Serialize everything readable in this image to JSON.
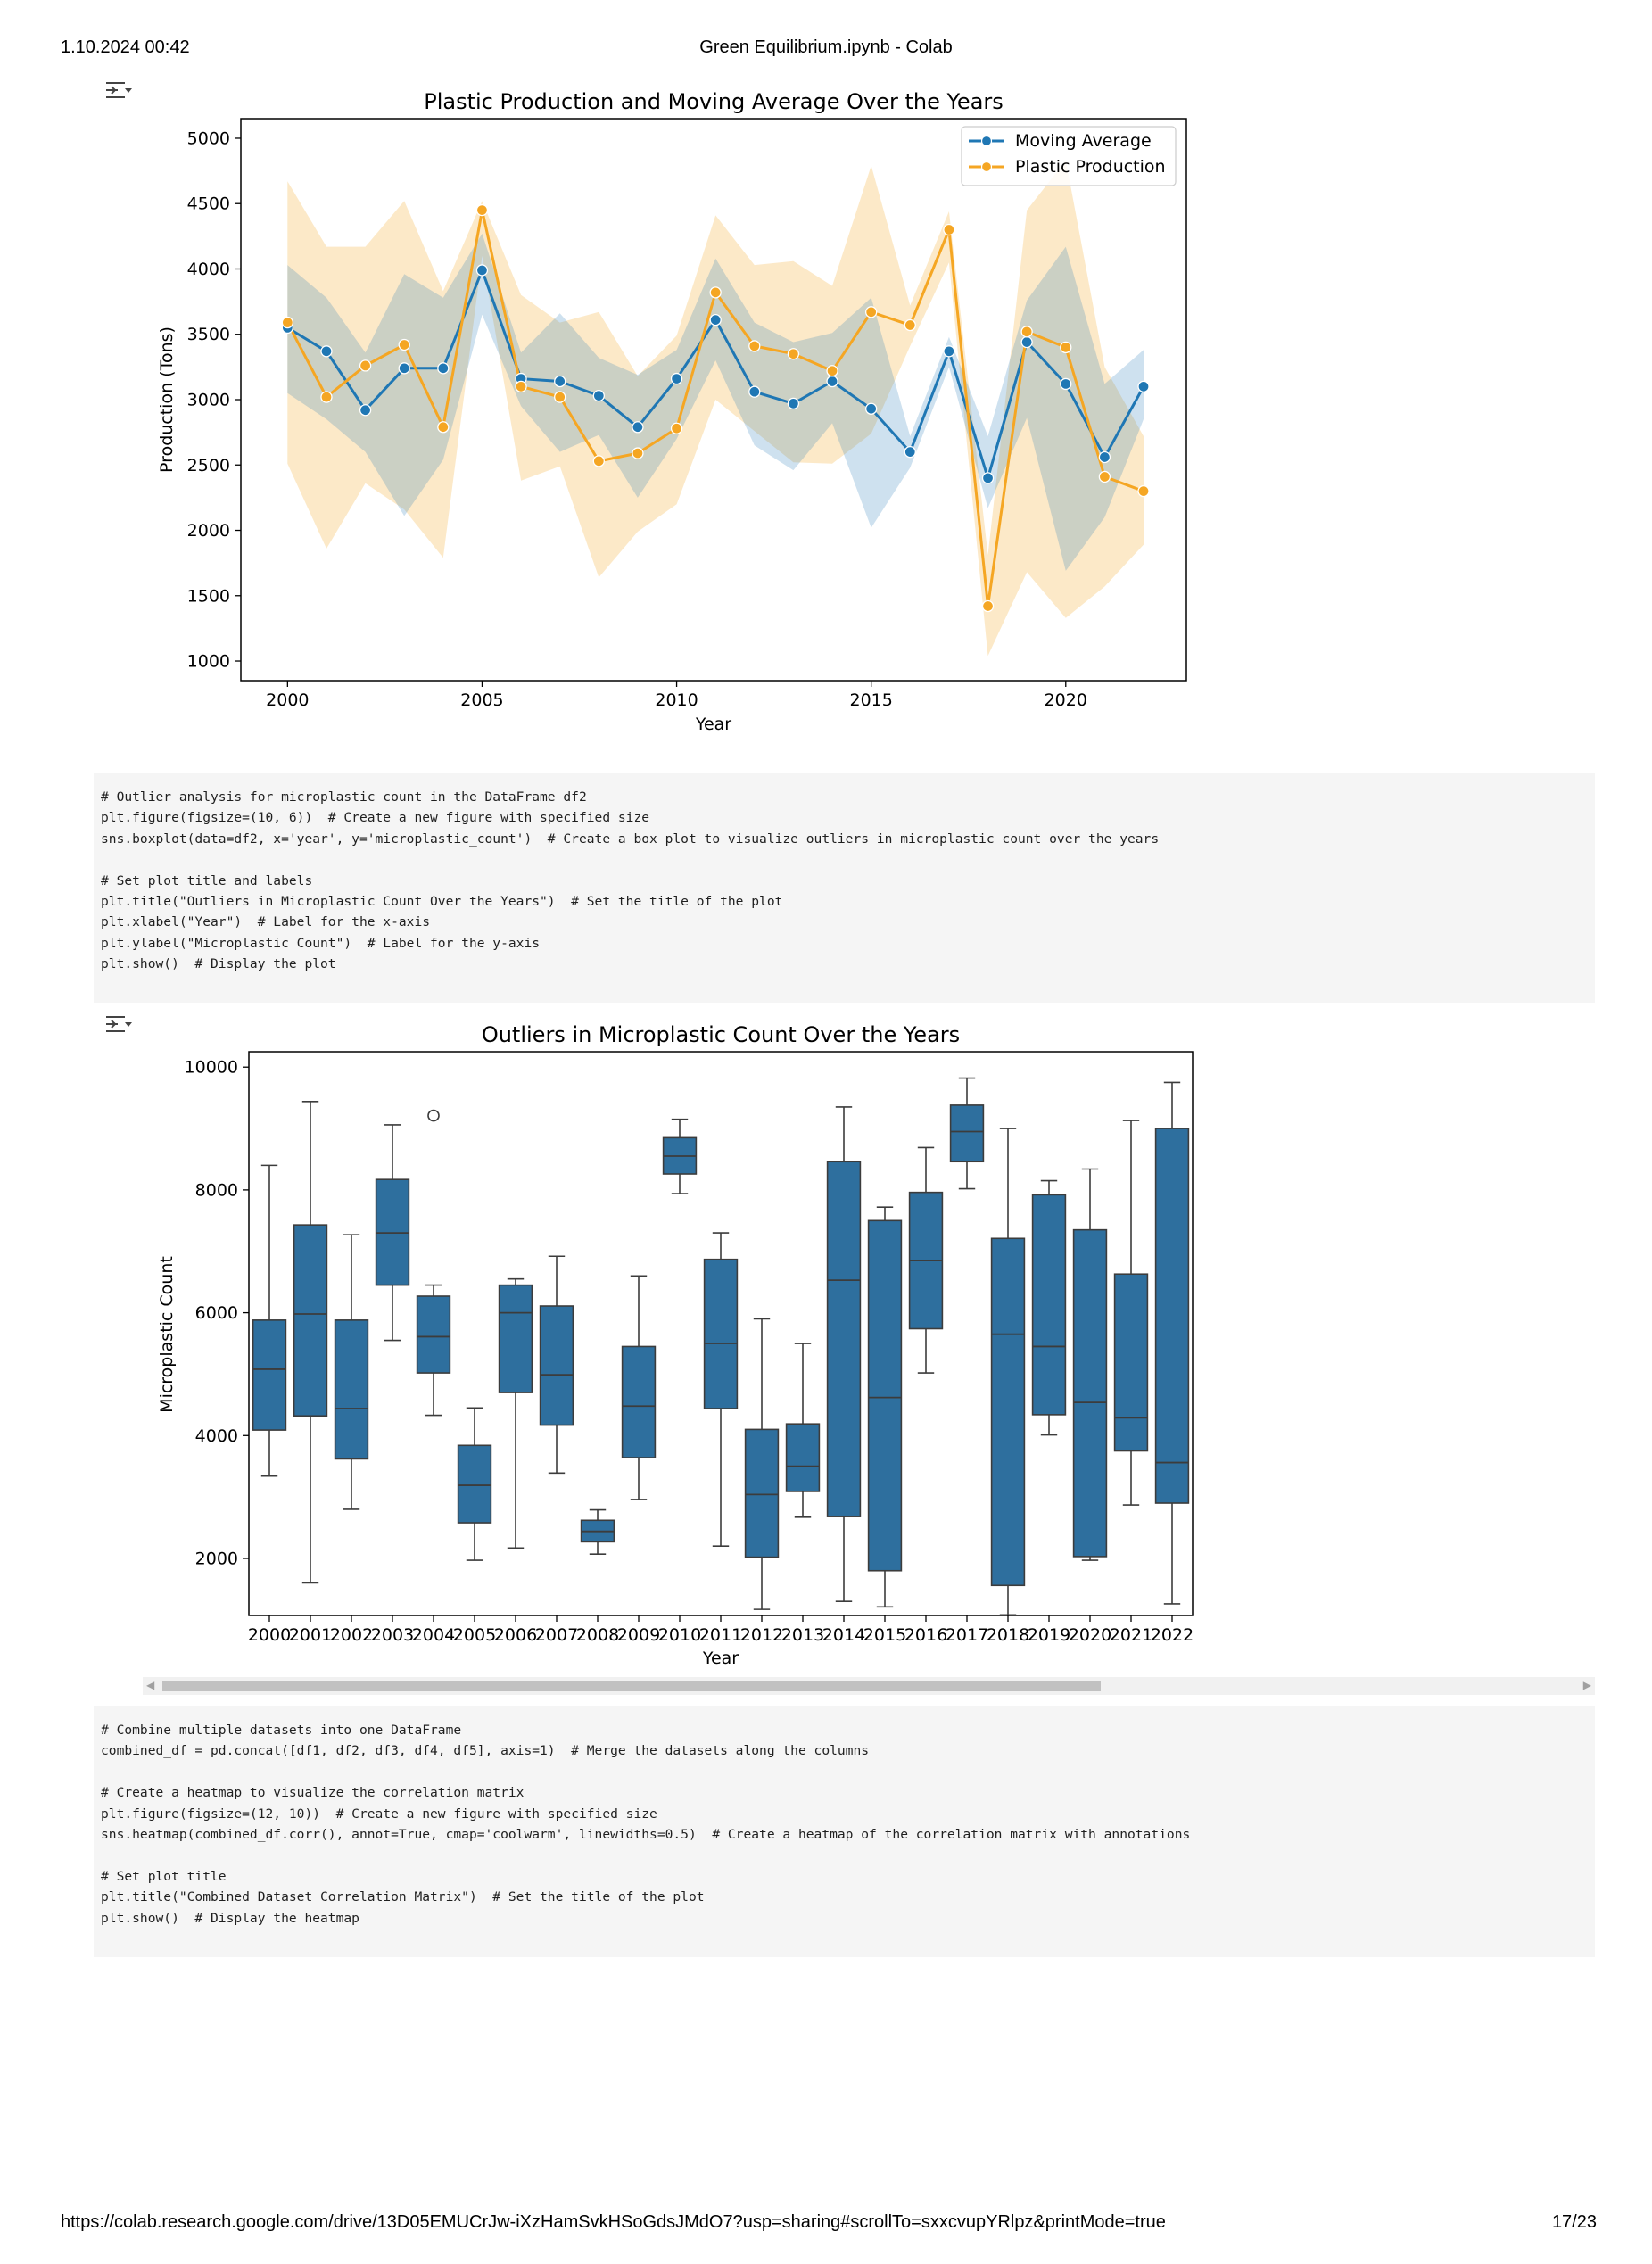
{
  "header": {
    "datetime": "1.10.2024 00:42",
    "title": "Green Equilibrium.ipynb - Colab"
  },
  "footer": {
    "url": "https://colab.research.google.com/drive/13D05EMUCrJw-iXzHamSvkHSoGdsJMdO7?usp=sharing#scrollTo=sxxcvupYRlpz&printMode=true",
    "page": "17/23"
  },
  "icons": {
    "output_toggle": "output-toggle-icon",
    "scroll_left": "chevron-left-icon",
    "scroll_right": "chevron-right-icon"
  },
  "code_cells": [
    {
      "lines": [
        "# Outlier analysis for microplastic count in the DataFrame df2",
        "plt.figure(figsize=(10, 6))  # Create a new figure with specified size",
        "sns.boxplot(data=df2, x='year', y='microplastic_count')  # Create a box plot to visualize outliers in microplastic count over the years",
        "",
        "# Set plot title and labels",
        "plt.title(\"Outliers in Microplastic Count Over the Years\")  # Set the title of the plot",
        "plt.xlabel(\"Year\")  # Label for the x-axis",
        "plt.ylabel(\"Microplastic Count\")  # Label for the y-axis",
        "plt.show()  # Display the plot"
      ]
    },
    {
      "lines": [
        "# Combine multiple datasets into one DataFrame",
        "combined_df = pd.concat([df1, df2, df3, df4, df5], axis=1)  # Merge the datasets along the columns",
        "",
        "# Create a heatmap to visualize the correlation matrix",
        "plt.figure(figsize=(12, 10))  # Create a new figure with specified size",
        "sns.heatmap(combined_df.corr(), annot=True, cmap='coolwarm', linewidths=0.5)  # Create a heatmap of the correlation matrix with annotations",
        "",
        "# Set plot title",
        "plt.title(\"Combined Dataset Correlation Matrix\")  # Set the title of the plot",
        "plt.show()  # Display the heatmap"
      ]
    }
  ],
  "chart_data": [
    {
      "type": "line",
      "title": "Plastic Production and Moving Average Over the Years",
      "xlabel": "Year",
      "ylabel": "Production (Tons)",
      "xlim": [
        1998.8,
        2023.1
      ],
      "ylim": [
        850,
        5150
      ],
      "xticks": [
        2000,
        2005,
        2010,
        2015,
        2020
      ],
      "yticks": [
        1000,
        1500,
        2000,
        2500,
        3000,
        3500,
        4000,
        4500,
        5000
      ],
      "legend_position": "upper right",
      "grid": false,
      "x": [
        2000,
        2001,
        2002,
        2003,
        2004,
        2005,
        2006,
        2007,
        2008,
        2009,
        2010,
        2011,
        2012,
        2013,
        2014,
        2015,
        2016,
        2017,
        2018,
        2019,
        2020,
        2021,
        2022
      ],
      "series": [
        {
          "name": "Moving Average",
          "color": "#1f77b4",
          "values": [
            3550,
            3370,
            2920,
            3240,
            3240,
            3990,
            3160,
            3140,
            3030,
            2790,
            3160,
            3610,
            3060,
            2970,
            3140,
            2930,
            2600,
            3370,
            2400,
            3440,
            3120,
            2560,
            3100
          ],
          "ci_low": [
            3050,
            2850,
            2600,
            2110,
            2540,
            3650,
            2950,
            2600,
            2730,
            2250,
            2700,
            3300,
            2650,
            2460,
            2820,
            2020,
            2480,
            3250,
            2170,
            2860,
            1690,
            2100,
            2850
          ],
          "ci_high": [
            4030,
            3780,
            3360,
            3960,
            3780,
            4270,
            3360,
            3660,
            3320,
            3190,
            3380,
            4080,
            3590,
            3440,
            3510,
            3780,
            2720,
            3480,
            2720,
            3760,
            4170,
            3120,
            3380
          ]
        },
        {
          "name": "Plastic Production",
          "color": "#f5a623",
          "values": [
            3590,
            3020,
            3260,
            3420,
            2790,
            4450,
            3100,
            3020,
            2530,
            2590,
            2780,
            3820,
            3410,
            3350,
            3220,
            3670,
            3570,
            4300,
            1420,
            3520,
            3400,
            2410,
            2300
          ],
          "ci_low": [
            2510,
            1860,
            2360,
            2160,
            1790,
            4100,
            2380,
            2490,
            1640,
            1990,
            2200,
            3000,
            2760,
            2520,
            2510,
            2740,
            3410,
            4050,
            1040,
            1680,
            1330,
            1570,
            1890
          ],
          "ci_high": [
            4670,
            4170,
            4170,
            4520,
            3830,
            4520,
            3800,
            3590,
            3670,
            3180,
            3490,
            4410,
            4030,
            4060,
            3870,
            4790,
            3720,
            4440,
            1810,
            4450,
            4830,
            3250,
            2720
          ]
        }
      ]
    },
    {
      "type": "box",
      "title": "Outliers in Microplastic Count Over the Years",
      "xlabel": "Year",
      "ylabel": "Microplastic Count",
      "ylim": [
        1070,
        10250
      ],
      "yticks": [
        2000,
        4000,
        6000,
        8000,
        10000
      ],
      "color": "#2e6f9e",
      "categories": [
        "2000",
        "2001",
        "2002",
        "2003",
        "2004",
        "2005",
        "2006",
        "2007",
        "2008",
        "2009",
        "2010",
        "2011",
        "2012",
        "2013",
        "2014",
        "2015",
        "2016",
        "2017",
        "2018",
        "2019",
        "2020",
        "2021",
        "2022"
      ],
      "boxes": [
        {
          "whislo": 3340,
          "q1": 4090,
          "med": 5080,
          "q3": 5880,
          "whishi": 8400,
          "fliers": []
        },
        {
          "whislo": 1600,
          "q1": 4320,
          "med": 5980,
          "q3": 7430,
          "whishi": 9440,
          "fliers": []
        },
        {
          "whislo": 2800,
          "q1": 3620,
          "med": 4440,
          "q3": 5880,
          "whishi": 7270,
          "fliers": []
        },
        {
          "whislo": 5550,
          "q1": 6450,
          "med": 7300,
          "q3": 8170,
          "whishi": 9060,
          "fliers": []
        },
        {
          "whislo": 4330,
          "q1": 5020,
          "med": 5610,
          "q3": 6270,
          "whishi": 6450,
          "fliers": [
            9210
          ]
        },
        {
          "whislo": 1970,
          "q1": 2580,
          "med": 3190,
          "q3": 3840,
          "whishi": 4450,
          "fliers": []
        },
        {
          "whislo": 2170,
          "q1": 4700,
          "med": 6000,
          "q3": 6450,
          "whishi": 6550,
          "fliers": []
        },
        {
          "whislo": 3390,
          "q1": 4170,
          "med": 4990,
          "q3": 6110,
          "whishi": 6920,
          "fliers": []
        },
        {
          "whislo": 2070,
          "q1": 2270,
          "med": 2440,
          "q3": 2620,
          "whishi": 2790,
          "fliers": []
        },
        {
          "whislo": 2960,
          "q1": 3640,
          "med": 4480,
          "q3": 5450,
          "whishi": 6600,
          "fliers": []
        },
        {
          "whislo": 7940,
          "q1": 8260,
          "med": 8550,
          "q3": 8850,
          "whishi": 9150,
          "fliers": []
        },
        {
          "whislo": 2200,
          "q1": 4440,
          "med": 5500,
          "q3": 6870,
          "whishi": 7300,
          "fliers": []
        },
        {
          "whislo": 1170,
          "q1": 2020,
          "med": 3040,
          "q3": 4100,
          "whishi": 5900,
          "fliers": []
        },
        {
          "whislo": 2670,
          "q1": 3090,
          "med": 3500,
          "q3": 4190,
          "whishi": 5500,
          "fliers": []
        },
        {
          "whislo": 1300,
          "q1": 2680,
          "med": 6530,
          "q3": 8460,
          "whishi": 9350,
          "fliers": []
        },
        {
          "whislo": 1210,
          "q1": 1800,
          "med": 4620,
          "q3": 7500,
          "whishi": 7720,
          "fliers": []
        },
        {
          "whislo": 5020,
          "q1": 5740,
          "med": 6850,
          "q3": 7960,
          "whishi": 8690,
          "fliers": []
        },
        {
          "whislo": 8020,
          "q1": 8460,
          "med": 8950,
          "q3": 9380,
          "whishi": 9820,
          "fliers": []
        },
        {
          "whislo": 1080,
          "q1": 1560,
          "med": 5650,
          "q3": 7210,
          "whishi": 9000,
          "fliers": []
        },
        {
          "whislo": 4010,
          "q1": 4340,
          "med": 5450,
          "q3": 7920,
          "whishi": 8150,
          "fliers": []
        },
        {
          "whislo": 1970,
          "q1": 2030,
          "med": 4540,
          "q3": 7350,
          "whishi": 8340,
          "fliers": []
        },
        {
          "whislo": 2870,
          "q1": 3750,
          "med": 4290,
          "q3": 6630,
          "whishi": 9130,
          "fliers": []
        },
        {
          "whislo": 1260,
          "q1": 2900,
          "med": 3560,
          "q3": 9000,
          "whishi": 9750,
          "fliers": []
        }
      ]
    }
  ]
}
